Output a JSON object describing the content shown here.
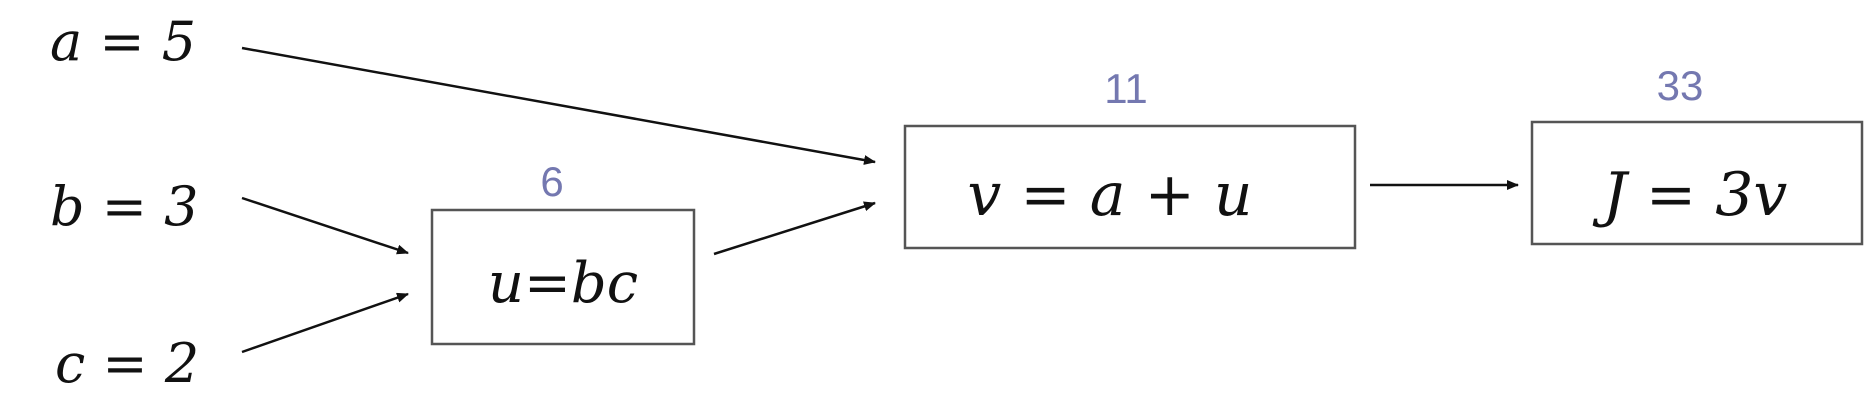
{
  "inputs": {
    "a": "a = 5",
    "b": "b = 3",
    "c": "c = 2"
  },
  "nodes": {
    "u": {
      "expression": "u=bc",
      "value": "6"
    },
    "v": {
      "expression": "v = a + u",
      "value": "11"
    },
    "j": {
      "expression": "J = 3v",
      "value": "33"
    }
  },
  "colors": {
    "value_text": "#7478b0",
    "box_border": "#555555",
    "arrow": "#111111"
  }
}
